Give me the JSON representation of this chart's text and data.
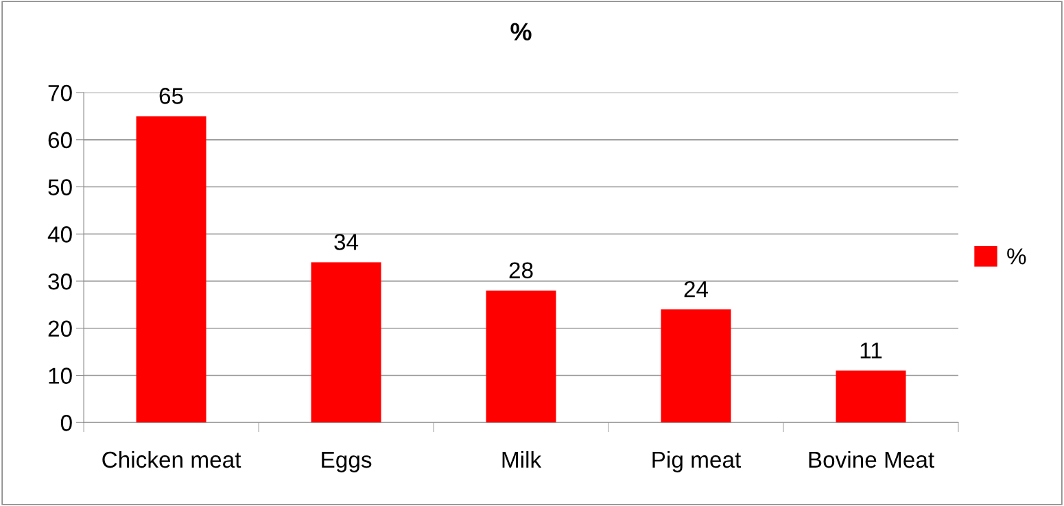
{
  "chart_data": {
    "type": "bar",
    "title": "%",
    "categories": [
      "Chicken meat",
      "Eggs",
      "Milk",
      "Pig meat",
      "Bovine Meat"
    ],
    "series": [
      {
        "name": "%",
        "color": "#ff0000",
        "values": [
          65,
          34,
          28,
          24,
          11
        ]
      }
    ],
    "ylim": [
      0,
      70
    ],
    "yticks": [
      0,
      10,
      20,
      30,
      40,
      50,
      60,
      70
    ],
    "grid": "y",
    "legend": "right",
    "data_labels": true
  }
}
